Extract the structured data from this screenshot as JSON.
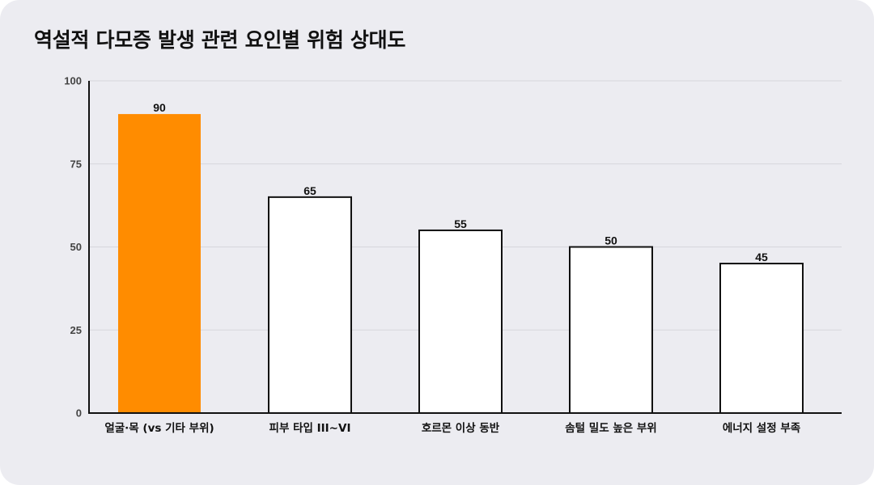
{
  "chart_data": {
    "type": "bar",
    "title": "역설적 다모증 발생 관련 요인별 위험 상대도",
    "xlabel": "",
    "ylabel": "",
    "categories": [
      "얼굴·목 (vs 기타 부위)",
      "피부 타입 III~VI",
      "호르몬 이상 동반",
      "솜털 밀도 높은 부위",
      "에너지 설정 부족"
    ],
    "values": [
      90,
      65,
      55,
      50,
      45
    ],
    "ylim": [
      0,
      100
    ],
    "yticks": [
      0,
      25,
      50,
      75,
      100
    ],
    "grid": true,
    "legend": "none",
    "highlight_index": 0,
    "colors": {
      "highlight": "#ff8c00",
      "bar_fill": "#ffffff",
      "bar_stroke": "#111111",
      "gridline": "#d6d6dc",
      "axis": "#111111",
      "background": "#ececf1"
    }
  }
}
